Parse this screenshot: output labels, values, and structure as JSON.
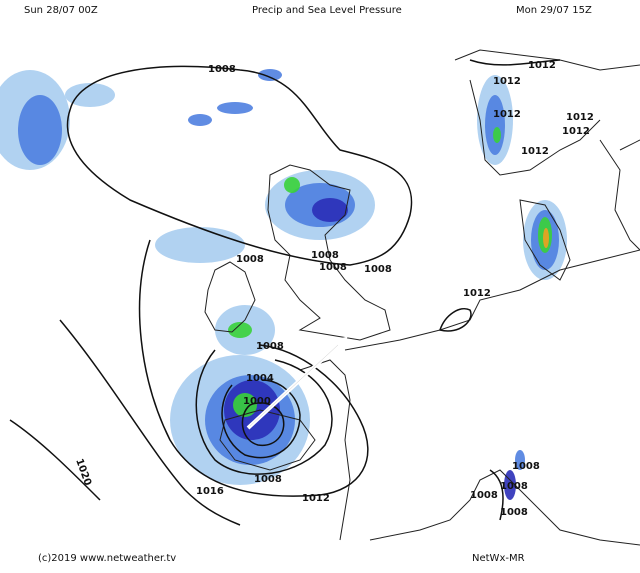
{
  "header": {
    "start_time": "Sun 28/07 00Z",
    "title": "Precip and Sea Level Pressure",
    "valid_time": "Mon 29/07 15Z"
  },
  "footer": {
    "copyright": "(c)2019 www.netweather.tv",
    "model": "NetWx-MR"
  },
  "map": {
    "colors": {
      "light_precip": "#a9cdf0",
      "moderate_precip": "#4f7fe0",
      "heavy_precip": "#2b2fb8",
      "very_heavy_precip": "#3ad13a",
      "extreme_precip": "#f0a020",
      "isobar": "#111111",
      "coastline": "#222222",
      "arrow": "#ffffff"
    },
    "isobar_labels": [
      "1008",
      "1012",
      "1012",
      "1012",
      "1012",
      "1012",
      "1012",
      "1008",
      "1008",
      "1008",
      "1008",
      "1012",
      "1008",
      "1004",
      "1000",
      "1008",
      "1012",
      "1016",
      "1020",
      "1008",
      "1008",
      "1008",
      "1008"
    ],
    "arrow_icon": "wind-direction-arrow"
  }
}
